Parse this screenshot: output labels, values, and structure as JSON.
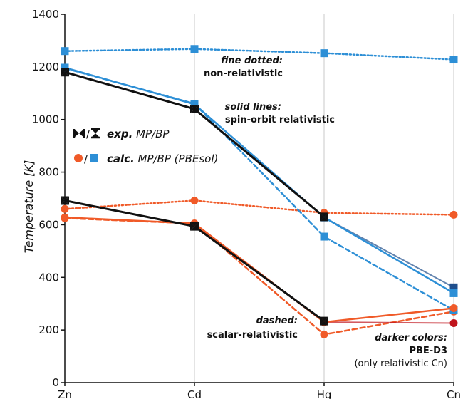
{
  "chart_data": {
    "type": "line",
    "categories": [
      "Zn",
      "Cd",
      "Hg",
      "Cn"
    ],
    "ylabel": "Temperature [K]",
    "ylim": [
      0,
      1400
    ],
    "yticks": [
      0,
      200,
      400,
      600,
      800,
      1000,
      1200,
      1400
    ],
    "grid": "vertical lines at categories",
    "legend": {
      "exp": {
        "prefix": "exp.",
        "text": " MP/BP"
      },
      "calc": {
        "prefix": "calc.",
        "text": " MP/BP ",
        "paren": "(PBEsol)"
      }
    },
    "annotations": {
      "fine_dotted": {
        "title": "fine dotted:",
        "text": "non-relativistic"
      },
      "solid": {
        "title": "solid lines:",
        "text": "spin-orbit relativistic"
      },
      "dashed": {
        "title": "dashed:",
        "text": "scalar-relativistic"
      },
      "darker": {
        "title": "darker colors:",
        "text": "PBE-D3",
        "note": "(only relativistic Cn)"
      }
    },
    "colors": {
      "exp": "#111111",
      "calc_mp": "#f05a28",
      "calc_bp": "#2d8fd6",
      "d3_mp": "#c0141c",
      "d3_bp": "#1f4e8c",
      "grid": "#c8c8c8"
    },
    "series": [
      {
        "kind": "exp",
        "values": [
          692,
          594,
          234,
          null
        ]
      },
      {
        "kind": "exp",
        "values": [
          1180,
          1040,
          630,
          null
        ]
      },
      {
        "kind": "mp_nonrel",
        "values": [
          660,
          692,
          645,
          638
        ]
      },
      {
        "kind": "mp_scalar",
        "values": [
          625,
          605,
          183,
          270
        ]
      },
      {
        "kind": "mp_so",
        "values": [
          628,
          605,
          230,
          283
        ]
      },
      {
        "kind": "bp_nonrel",
        "values": [
          1260,
          1268,
          1252,
          1228
        ]
      },
      {
        "kind": "bp_scalar",
        "values": [
          1195,
          1060,
          555,
          275
        ]
      },
      {
        "kind": "bp_so",
        "values": [
          1197,
          1058,
          628,
          340
        ]
      },
      {
        "kind": "mp_d3",
        "values": [
          null,
          null,
          230,
          226
        ]
      },
      {
        "kind": "bp_d3",
        "values": [
          null,
          null,
          628,
          362
        ]
      }
    ]
  }
}
